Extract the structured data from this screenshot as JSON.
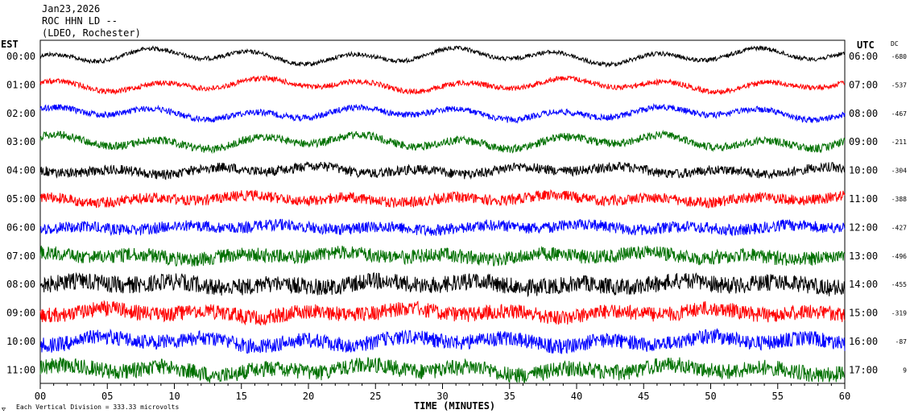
{
  "header": {
    "date": "Jan23,2026",
    "station": "ROC HHN LD --",
    "location": "(LDEO, Rochester)"
  },
  "axes": {
    "left_label": "EST",
    "right_label": "UTC",
    "dc_label": "DC",
    "x_label": "TIME (MINUTES)",
    "x_ticks": [
      "00",
      "05",
      "10",
      "15",
      "20",
      "25",
      "30",
      "35",
      "40",
      "45",
      "50",
      "55",
      "60"
    ]
  },
  "footer": {
    "scale_text": "Each Vertical Division =  333.33 microvolts"
  },
  "colors": {
    "trace_cycle": [
      "#000000",
      "#ff0000",
      "#0000ff",
      "#007000"
    ],
    "background": "#ffffff",
    "text": "#000000"
  },
  "chart_data": {
    "type": "line",
    "title": "ROC HHN LD --",
    "xlabel": "TIME (MINUTES)",
    "xlim": [
      0,
      60
    ],
    "rows": [
      {
        "est": "00:00",
        "utc": "06:00",
        "dc": "-680",
        "color": "#000000",
        "amplitude": 0.55,
        "noise": 0.25
      },
      {
        "est": "01:00",
        "utc": "07:00",
        "dc": "-537",
        "color": "#ff0000",
        "amplitude": 0.45,
        "noise": 0.3
      },
      {
        "est": "02:00",
        "utc": "08:00",
        "dc": "-467",
        "color": "#0000ff",
        "amplitude": 0.45,
        "noise": 0.35
      },
      {
        "est": "03:00",
        "utc": "09:00",
        "dc": "-211",
        "color": "#007000",
        "amplitude": 0.5,
        "noise": 0.45
      },
      {
        "est": "04:00",
        "utc": "10:00",
        "dc": "-304",
        "color": "#000000",
        "amplitude": 0.3,
        "noise": 0.55
      },
      {
        "est": "05:00",
        "utc": "11:00",
        "dc": "-388",
        "color": "#ff0000",
        "amplitude": 0.25,
        "noise": 0.6
      },
      {
        "est": "06:00",
        "utc": "12:00",
        "dc": "-427",
        "color": "#0000ff",
        "amplitude": 0.2,
        "noise": 0.65
      },
      {
        "est": "07:00",
        "utc": "13:00",
        "dc": "-496",
        "color": "#007000",
        "amplitude": 0.25,
        "noise": 0.8
      },
      {
        "est": "08:00",
        "utc": "14:00",
        "dc": "-455",
        "color": "#000000",
        "amplitude": 0.25,
        "noise": 0.95
      },
      {
        "est": "09:00",
        "utc": "15:00",
        "dc": "-319",
        "color": "#ff0000",
        "amplitude": 0.3,
        "noise": 0.85
      },
      {
        "est": "10:00",
        "utc": "16:00",
        "dc": "-87",
        "color": "#0000ff",
        "amplitude": 0.35,
        "noise": 0.85
      },
      {
        "est": "11:00",
        "utc": "17:00",
        "dc": "9",
        "color": "#007000",
        "amplitude": 0.35,
        "noise": 0.9
      }
    ]
  }
}
